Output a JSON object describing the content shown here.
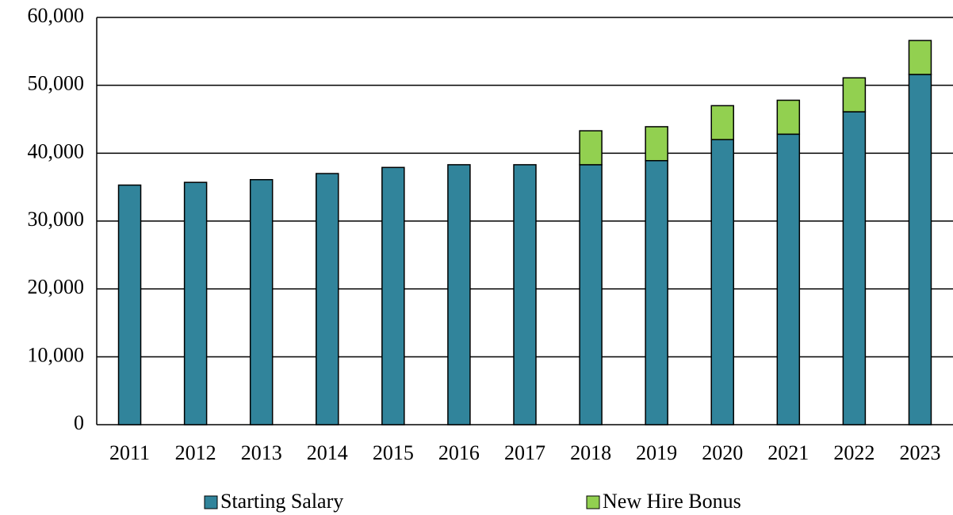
{
  "chart_data": {
    "type": "stacked_bar",
    "categories": [
      "2011",
      "2012",
      "2013",
      "2014",
      "2015",
      "2016",
      "2017",
      "2018",
      "2019",
      "2020",
      "2021",
      "2022",
      "2023"
    ],
    "series": [
      {
        "name": "Starting Salary",
        "color": "#31849b",
        "values": [
          35300,
          35700,
          36100,
          37000,
          37900,
          38300,
          38300,
          38300,
          38900,
          42000,
          42800,
          46100,
          51600
        ]
      },
      {
        "name": "New Hire Bonus",
        "color": "#92d050",
        "values": [
          0,
          0,
          0,
          0,
          0,
          0,
          0,
          5000,
          5000,
          5000,
          5000,
          5000,
          5000
        ]
      }
    ],
    "ylim": [
      0,
      60000
    ],
    "yticks": [
      0,
      {
        "value": 10000,
        "label": "10,000"
      },
      {
        "value": 20000,
        "label": "20,000"
      },
      {
        "value": 30000,
        "label": "30,000"
      },
      {
        "value": 40000,
        "label": "40,000"
      },
      {
        "value": 50000,
        "label": "50,000"
      },
      {
        "value": 60000,
        "label": "60,000"
      }
    ],
    "grid": true,
    "legend": "bottom"
  }
}
